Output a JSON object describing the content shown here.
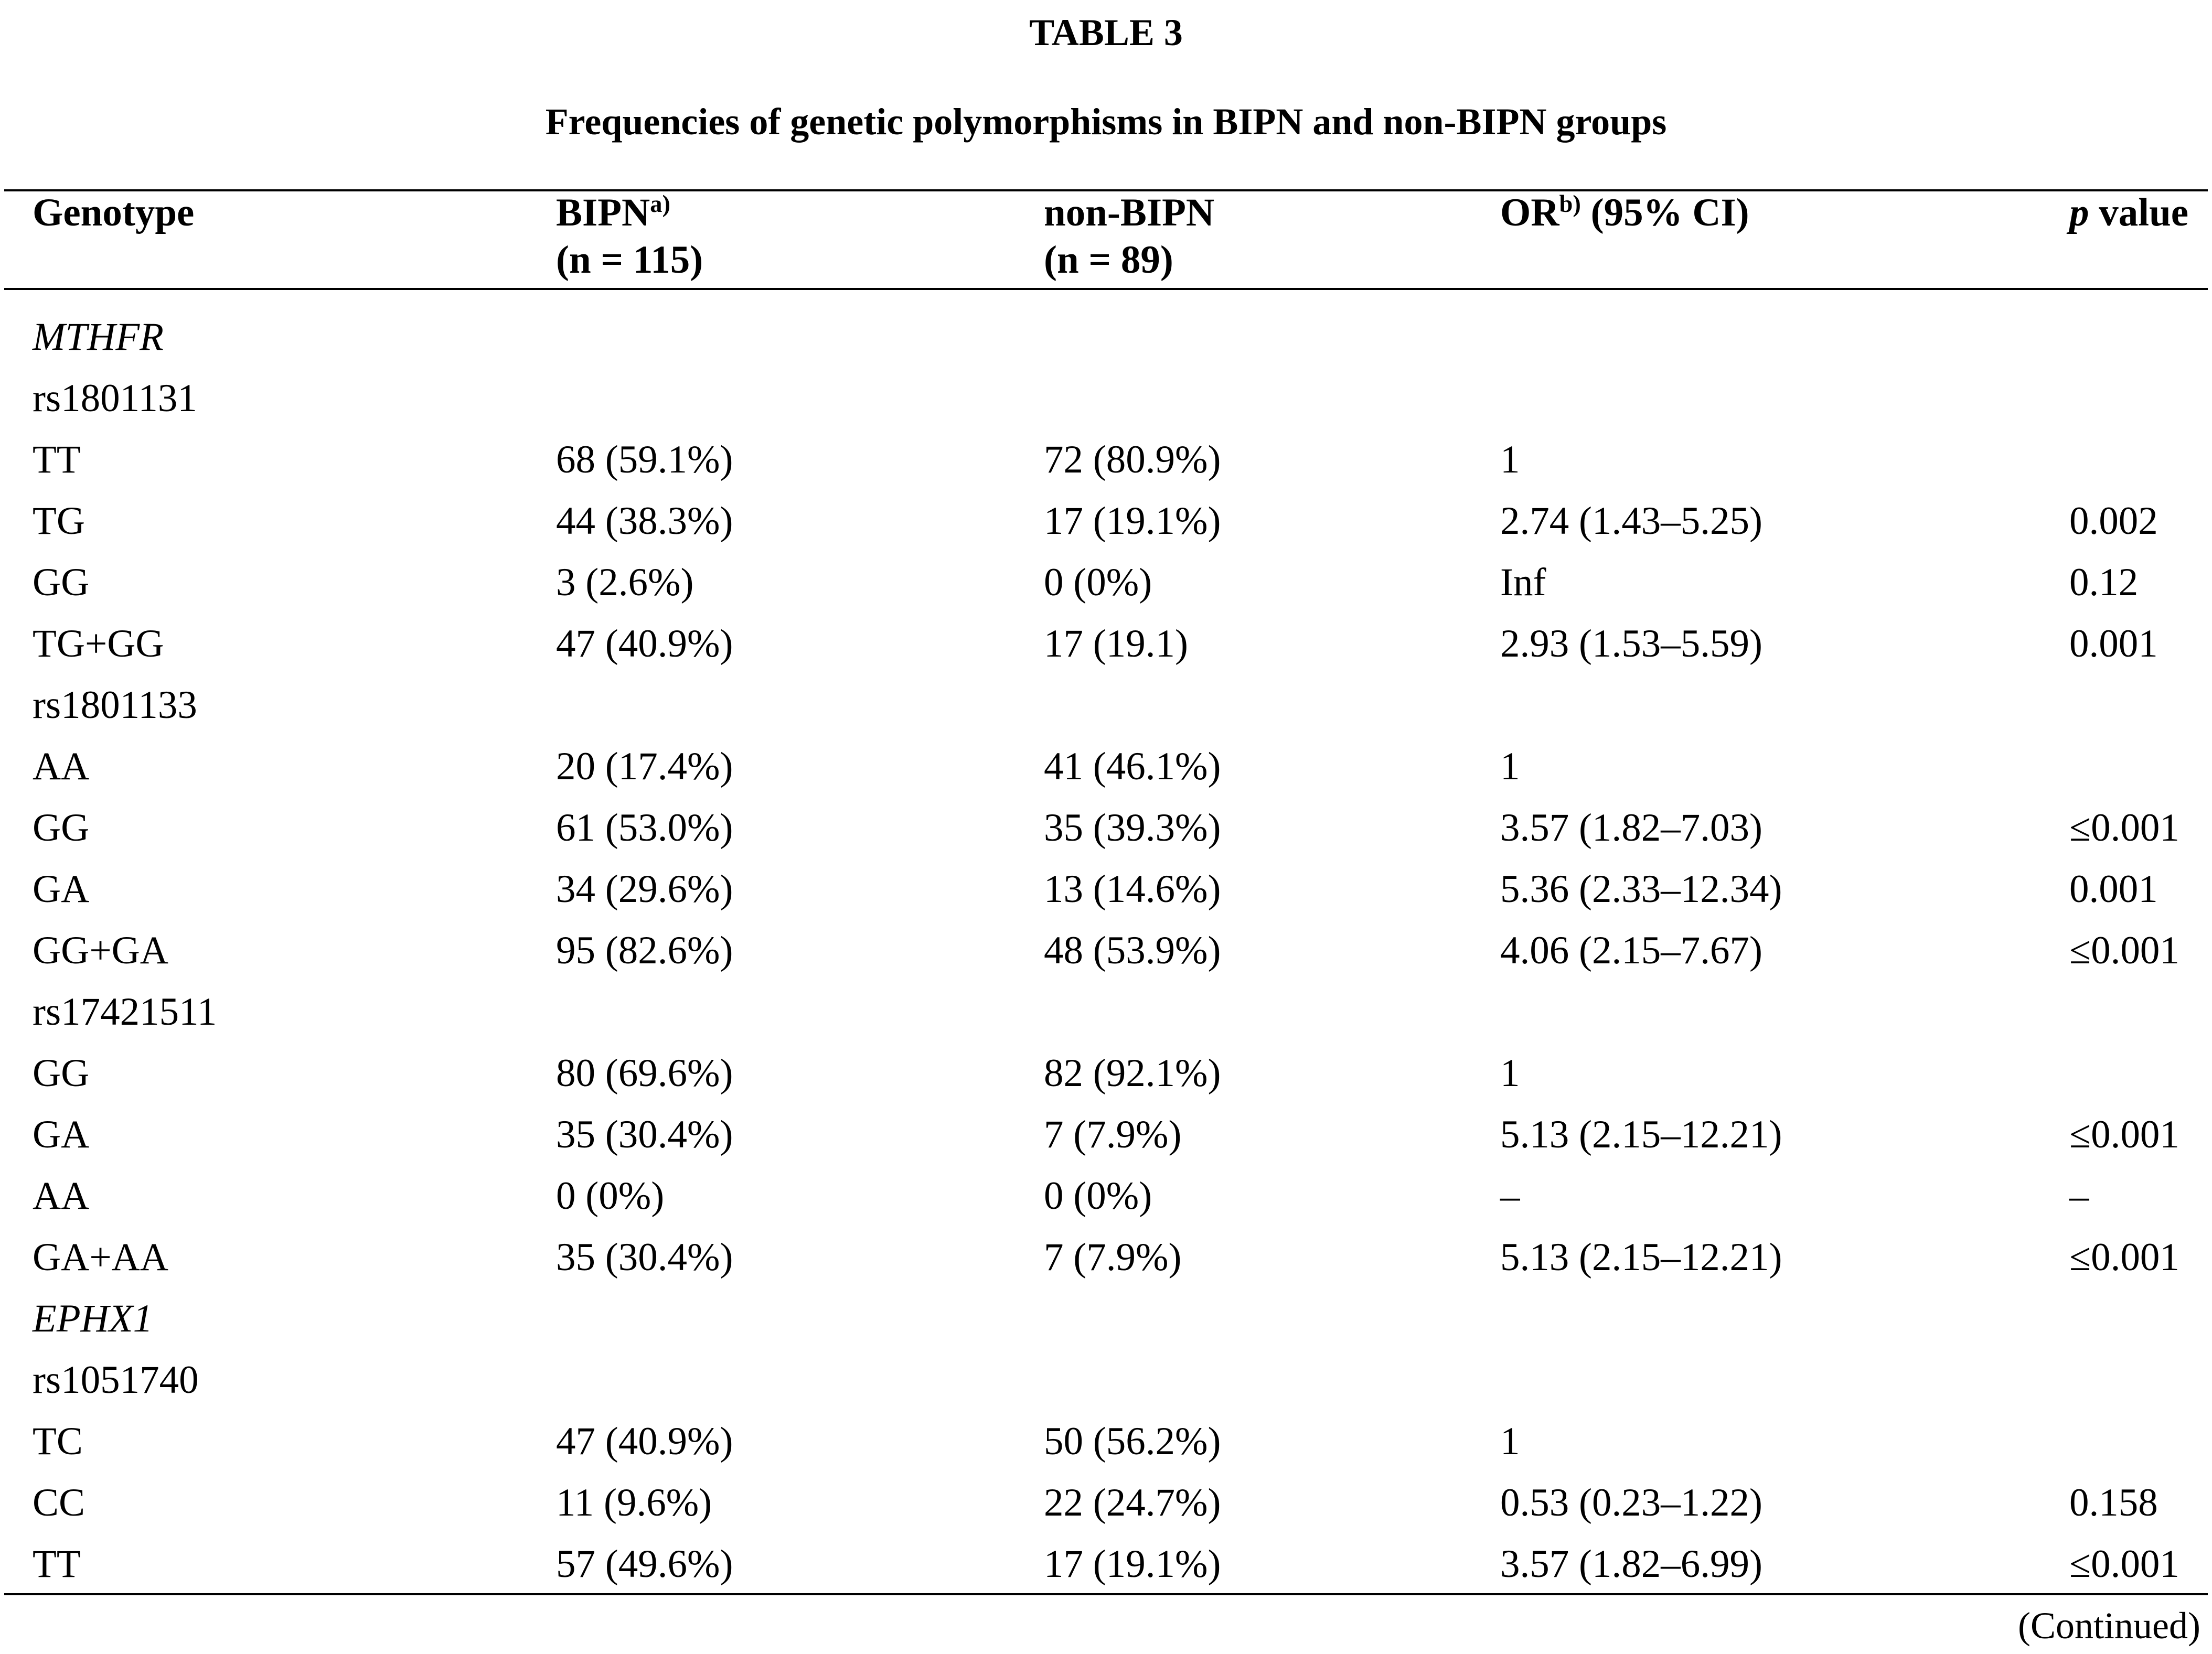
{
  "title": "TABLE 3",
  "subtitle": "Frequencies of genetic polymorphisms in BIPN and non-BIPN groups",
  "continued_note": "(Continued)",
  "header": {
    "genotype": "Genotype",
    "bipn": {
      "label": "BIPN",
      "sup": "a)",
      "line2": "(n = 115)"
    },
    "non_bipn": {
      "label": "non-BIPN",
      "line2": "(n = 89)"
    },
    "or": {
      "label": "OR",
      "sup": "b)",
      "rest": " (95% CI)"
    },
    "p": {
      "italic": "p",
      "rest": " value"
    }
  },
  "table": {
    "rows": [
      {
        "style": "gene",
        "genotype": "MTHFR",
        "bipn": "",
        "non_bipn": "",
        "or": "",
        "p": ""
      },
      {
        "style": "snp",
        "genotype": "rs1801131",
        "bipn": "",
        "non_bipn": "",
        "or": "",
        "p": ""
      },
      {
        "style": "",
        "genotype": "TT",
        "bipn": "68 (59.1%)",
        "non_bipn": "72 (80.9%)",
        "or": "1",
        "p": ""
      },
      {
        "style": "",
        "genotype": "TG",
        "bipn": "44 (38.3%)",
        "non_bipn": "17 (19.1%)",
        "or": "2.74 (1.43–5.25)",
        "p": "0.002"
      },
      {
        "style": "",
        "genotype": "GG",
        "bipn": "3 (2.6%)",
        "non_bipn": "0 (0%)",
        "or": "Inf",
        "p": "0.12"
      },
      {
        "style": "",
        "genotype": "TG+GG",
        "bipn": "47 (40.9%)",
        "non_bipn": "17 (19.1)",
        "or": "2.93 (1.53–5.59)",
        "p": "0.001"
      },
      {
        "style": "snp",
        "genotype": "rs1801133",
        "bipn": "",
        "non_bipn": "",
        "or": "",
        "p": ""
      },
      {
        "style": "",
        "genotype": "AA",
        "bipn": "20 (17.4%)",
        "non_bipn": "41 (46.1%)",
        "or": "1",
        "p": ""
      },
      {
        "style": "",
        "genotype": "GG",
        "bipn": "61 (53.0%)",
        "non_bipn": "35 (39.3%)",
        "or": "3.57 (1.82–7.03)",
        "p": "≤0.001"
      },
      {
        "style": "",
        "genotype": "GA",
        "bipn": "34 (29.6%)",
        "non_bipn": "13 (14.6%)",
        "or": "5.36 (2.33–12.34)",
        "p": "0.001"
      },
      {
        "style": "",
        "genotype": "GG+GA",
        "bipn": "95 (82.6%)",
        "non_bipn": "48 (53.9%)",
        "or": "4.06 (2.15–7.67)",
        "p": "≤0.001"
      },
      {
        "style": "snp",
        "genotype": "rs17421511",
        "bipn": "",
        "non_bipn": "",
        "or": "",
        "p": ""
      },
      {
        "style": "",
        "genotype": "GG",
        "bipn": "80 (69.6%)",
        "non_bipn": "82 (92.1%)",
        "or": "1",
        "p": ""
      },
      {
        "style": "",
        "genotype": "GA",
        "bipn": "35 (30.4%)",
        "non_bipn": "7 (7.9%)",
        "or": "5.13 (2.15–12.21)",
        "p": "≤0.001"
      },
      {
        "style": "",
        "genotype": "AA",
        "bipn": "0 (0%)",
        "non_bipn": "0 (0%)",
        "or": "–",
        "p": "–"
      },
      {
        "style": "",
        "genotype": "GA+AA",
        "bipn": "35 (30.4%)",
        "non_bipn": "7 (7.9%)",
        "or": "5.13 (2.15–12.21)",
        "p": "≤0.001"
      },
      {
        "style": "gene",
        "genotype": "EPHX1",
        "bipn": "",
        "non_bipn": "",
        "or": "",
        "p": ""
      },
      {
        "style": "snp",
        "genotype": "rs1051740",
        "bipn": "",
        "non_bipn": "",
        "or": "",
        "p": ""
      },
      {
        "style": "",
        "genotype": "TC",
        "bipn": "47 (40.9%)",
        "non_bipn": "50 (56.2%)",
        "or": "1",
        "p": ""
      },
      {
        "style": "",
        "genotype": "CC",
        "bipn": "11 (9.6%)",
        "non_bipn": "22 (24.7%)",
        "or": "0.53 (0.23–1.22)",
        "p": "0.158"
      },
      {
        "style": "",
        "genotype": "TT",
        "bipn": "57 (49.6%)",
        "non_bipn": "17 (19.1%)",
        "or": "3.57 (1.82–6.99)",
        "p": "≤0.001"
      }
    ]
  }
}
